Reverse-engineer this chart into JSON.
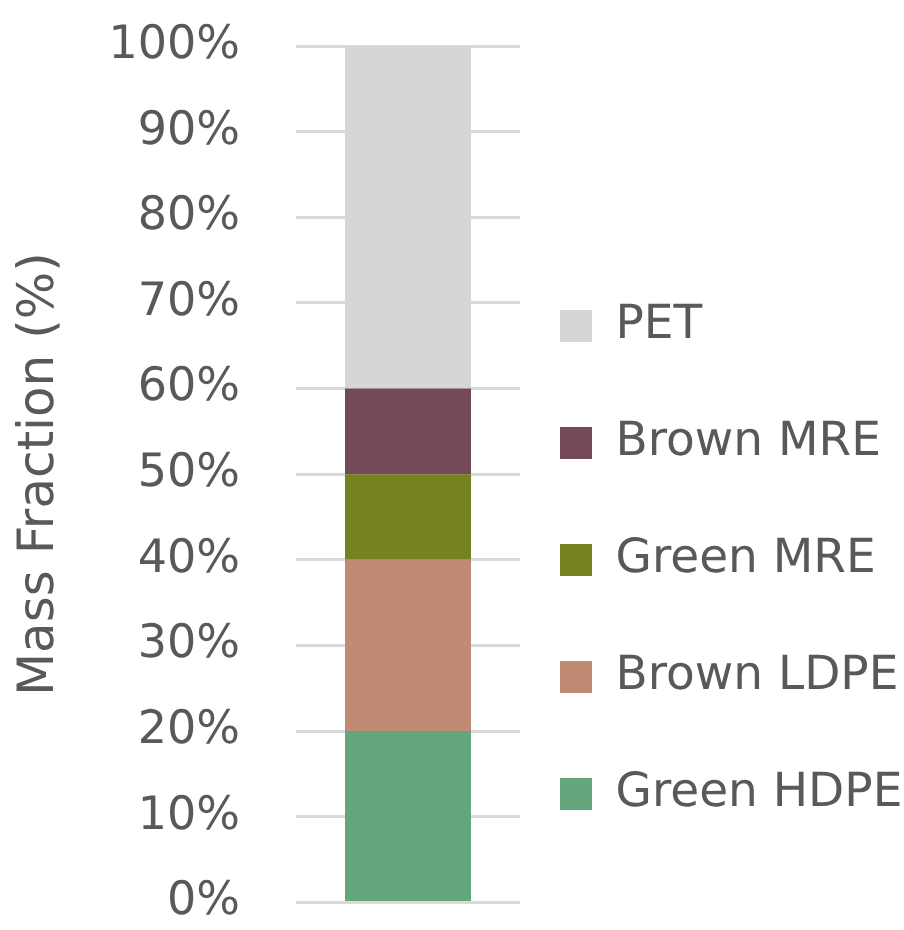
{
  "chart_data": {
    "type": "bar",
    "ylabel": "Mass Fraction (%)",
    "categories": [
      null
    ],
    "series": [
      {
        "name": "Green HDPE",
        "color": "#63a57c",
        "values": [
          20
        ]
      },
      {
        "name": "Brown LDPE",
        "color": "#c08a74",
        "values": [
          20
        ]
      },
      {
        "name": "Green MRE",
        "color": "#76821f",
        "values": [
          10
        ]
      },
      {
        "name": "Brown MRE",
        "color": "#744a57",
        "values": [
          10
        ]
      },
      {
        "name": "PET",
        "color": "#d6d6d6",
        "values": [
          40
        ]
      }
    ],
    "stacked": true,
    "ylim": [
      0,
      100
    ],
    "yticks": [
      {
        "value": 0,
        "label": "0%"
      },
      {
        "value": 10,
        "label": "10%"
      },
      {
        "value": 20,
        "label": "20%"
      },
      {
        "value": 30,
        "label": "30%"
      },
      {
        "value": 40,
        "label": "40%"
      },
      {
        "value": 50,
        "label": "50%"
      },
      {
        "value": 60,
        "label": "60%"
      },
      {
        "value": 70,
        "label": "70%"
      },
      {
        "value": 80,
        "label": "80%"
      },
      {
        "value": 90,
        "label": "90%"
      },
      {
        "value": 100,
        "label": "100%"
      }
    ],
    "grid": "y",
    "legend": "right"
  }
}
